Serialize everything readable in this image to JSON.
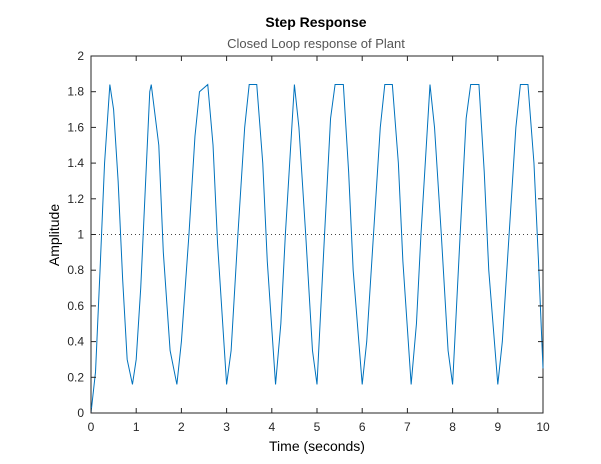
{
  "chart_data": {
    "type": "line",
    "title": "Step Response",
    "subtitle": "Closed Loop response of Plant",
    "xlabel": "Time (seconds)",
    "ylabel": "Amplitude",
    "xlim": [
      0,
      10
    ],
    "ylim": [
      0,
      2
    ],
    "xticks": [
      "0",
      "1",
      "2",
      "3",
      "4",
      "5",
      "6",
      "7",
      "8",
      "9",
      "10"
    ],
    "yticks": [
      "0",
      "0.2",
      "0.4",
      "0.6",
      "0.8",
      "1",
      "1.2",
      "1.4",
      "1.6",
      "1.8",
      "2"
    ],
    "grid": false,
    "reference_line": {
      "y": 1,
      "style": "dotted"
    },
    "series": [
      {
        "color": "#0072BD",
        "x": [
          0,
          0.1,
          0.2,
          0.3,
          0.417,
          0.5,
          0.6,
          0.7,
          0.8,
          0.917,
          1.0,
          1.1,
          1.2,
          1.3,
          1.333,
          1.5,
          1.6,
          1.75,
          1.9,
          2.0,
          2.167,
          2.3,
          2.4,
          2.583,
          2.7,
          2.8,
          3.0,
          3.1,
          3.25,
          3.4,
          3.5,
          3.667,
          3.8,
          3.9,
          4.083,
          4.2,
          4.3,
          4.5,
          4.6,
          4.75,
          4.9,
          5.0,
          5.167,
          5.3,
          5.4,
          5.583,
          5.7,
          5.8,
          6.0,
          6.1,
          6.25,
          6.4,
          6.5,
          6.667,
          6.8,
          6.9,
          7.083,
          7.2,
          7.3,
          7.5,
          7.6,
          7.75,
          7.9,
          8.0,
          8.167,
          8.3,
          8.4,
          8.583,
          8.7,
          8.8,
          9.0,
          9.1,
          9.25,
          9.4,
          9.5,
          9.667,
          9.8,
          9.9,
          10.0
        ],
        "y": [
          0,
          0.23,
          0.8,
          1.4,
          1.84,
          1.7,
          1.3,
          0.75,
          0.3,
          0.16,
          0.3,
          0.7,
          1.25,
          1.8,
          1.84,
          1.5,
          0.9,
          0.35,
          0.16,
          0.4,
          1.0,
          1.55,
          1.8,
          1.84,
          1.5,
          0.95,
          0.16,
          0.35,
          1.0,
          1.6,
          1.84,
          1.84,
          1.4,
          0.85,
          0.16,
          0.5,
          1.0,
          1.84,
          1.6,
          1.0,
          0.35,
          0.16,
          1.0,
          1.65,
          1.84,
          1.84,
          1.35,
          0.8,
          0.16,
          0.4,
          1.0,
          1.6,
          1.84,
          1.84,
          1.4,
          0.85,
          0.16,
          0.5,
          1.0,
          1.84,
          1.6,
          1.0,
          0.35,
          0.16,
          1.0,
          1.65,
          1.84,
          1.84,
          1.35,
          0.8,
          0.16,
          0.4,
          1.0,
          1.6,
          1.84,
          1.84,
          1.4,
          0.85,
          0.25
        ]
      }
    ]
  }
}
